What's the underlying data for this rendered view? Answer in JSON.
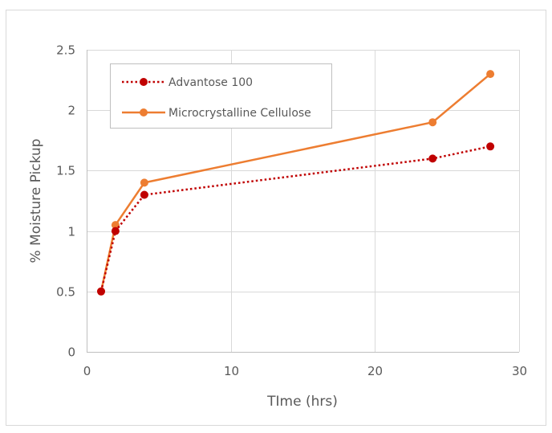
{
  "chart_data": {
    "type": "line",
    "title": "",
    "xlabel": "TIme (hrs)",
    "ylabel": "% Moisture Pickup",
    "xlim": [
      0,
      30
    ],
    "ylim": [
      0,
      2.5
    ],
    "xticks": [
      0,
      10,
      20,
      30
    ],
    "yticks": [
      0,
      0.5,
      1,
      1.5,
      2,
      2.5
    ],
    "ytick_labels": [
      "0",
      "0.5",
      "1",
      "1.5",
      "2",
      "2.5"
    ],
    "grid": true,
    "legend_position": "top-left, inside plot",
    "series": [
      {
        "name": "Advantose 100",
        "color": "#c00000",
        "line_style": "dotted",
        "marker": "circle",
        "x": [
          1,
          2,
          4,
          24,
          28
        ],
        "y": [
          0.5,
          1.0,
          1.3,
          1.6,
          1.7
        ]
      },
      {
        "name": "Microcrystalline Cellulose",
        "color": "#ed7d31",
        "line_style": "solid",
        "marker": "circle",
        "x": [
          1,
          2,
          4,
          24,
          28
        ],
        "y": [
          0.5,
          1.05,
          1.4,
          1.9,
          2.3
        ]
      }
    ]
  }
}
